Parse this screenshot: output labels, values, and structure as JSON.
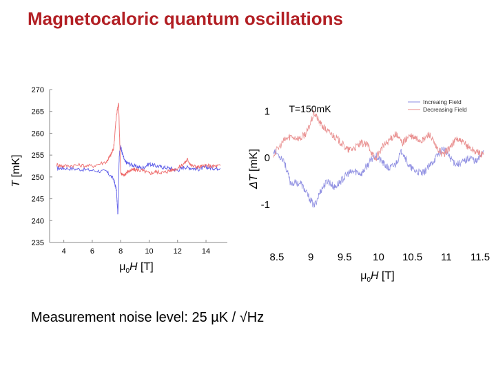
{
  "slide": {
    "title": "Magnetocaloric quantum oscillations",
    "footer": "Measurement noise level: 25 µK / √Hz"
  },
  "chart_data": [
    {
      "type": "line",
      "title": "",
      "xlabel_prefix": "μ",
      "xlabel_sub": "0",
      "xlabel_var": "H",
      "xlabel_unit": " [T]",
      "ylabel_var": "T",
      "ylabel_unit": " [mK]",
      "xlim": [
        3,
        15.5
      ],
      "ylim": [
        235,
        270
      ],
      "xticks": [
        4,
        6,
        8,
        10,
        12,
        14
      ],
      "yticks": [
        235,
        240,
        245,
        250,
        255,
        260,
        265,
        270
      ],
      "grid": false,
      "colors": {
        "up": "#4a4ae6",
        "down": "#ec5a5a",
        "axis": "#8a8a8a"
      },
      "series": [
        {
          "key": "up",
          "x": [
            3.5,
            4,
            5,
            6,
            7,
            7.5,
            7.7,
            7.8,
            7.9,
            8,
            8.1,
            8.3,
            8.6,
            9,
            9.5,
            10,
            10.5,
            11,
            11.5,
            12,
            12.5,
            13,
            13.5,
            14,
            14.5,
            15
          ],
          "y": [
            252,
            252,
            251.8,
            251.5,
            251.2,
            249.5,
            247,
            241.5,
            255,
            257,
            255.5,
            253.5,
            253,
            252.5,
            252,
            253,
            252.5,
            252.2,
            252,
            251.5,
            252.3,
            252,
            251.8,
            252.2,
            252,
            252
          ]
        },
        {
          "key": "down",
          "x": [
            3.5,
            4,
            5,
            6,
            7,
            7.3,
            7.5,
            7.7,
            7.85,
            8,
            8.2,
            8.4,
            8.7,
            9,
            9.5,
            10,
            10.5,
            11,
            11.5,
            12,
            12.5,
            12.7,
            13,
            13.5,
            14,
            14.5,
            15
          ],
          "y": [
            252.8,
            252.5,
            252.7,
            252.5,
            253.5,
            255,
            256.5,
            264,
            267,
            251,
            250.2,
            251,
            251.5,
            251.7,
            251.5,
            250.8,
            251.2,
            251,
            251.5,
            252,
            253.2,
            254,
            252.5,
            252.3,
            252.6,
            252.4,
            252.6
          ]
        }
      ]
    },
    {
      "type": "line",
      "title": "T=150mK",
      "xlabel_prefix": "μ",
      "xlabel_sub": "0",
      "xlabel_var": "H",
      "xlabel_unit": " [T]",
      "ylabel_var": "ΔT",
      "ylabel_unit": " [mK]",
      "xlim": [
        8.45,
        11.55
      ],
      "ylim": [
        -1.5,
        1.3
      ],
      "xticks": [
        8.5,
        9,
        9.5,
        10,
        10.5,
        11,
        11.5
      ],
      "yticks": [
        1,
        0,
        -1
      ],
      "grid": false,
      "legend": {
        "position": "top-right",
        "entries": [
          "Increaing Field",
          "Decreasing Field"
        ]
      },
      "colors": {
        "increasing": "#8a8ae0",
        "decreasing": "#e88a8a"
      },
      "series": [
        {
          "name": "Increaing Field",
          "key": "increasing",
          "x": [
            8.45,
            8.6,
            8.7,
            8.85,
            8.95,
            9.05,
            9.15,
            9.25,
            9.35,
            9.45,
            9.55,
            9.65,
            9.75,
            9.85,
            9.95,
            10.05,
            10.15,
            10.25,
            10.35,
            10.45,
            10.55,
            10.65,
            10.75,
            10.85,
            10.95,
            11.05,
            11.15,
            11.25,
            11.35,
            11.45,
            11.55
          ],
          "y": [
            0.15,
            -0.05,
            -0.55,
            -0.55,
            -0.8,
            -1.05,
            -0.7,
            -0.5,
            -0.65,
            -0.5,
            -0.35,
            -0.3,
            -0.35,
            -0.15,
            0.05,
            -0.1,
            -0.25,
            -0.15,
            0.15,
            -0.2,
            -0.3,
            -0.35,
            -0.2,
            0.0,
            0.2,
            0.0,
            -0.15,
            -0.1,
            0.0,
            -0.1,
            0.15
          ]
        },
        {
          "name": "Decreasing Field",
          "key": "decreasing",
          "x": [
            8.45,
            8.6,
            8.7,
            8.85,
            8.95,
            9.05,
            9.15,
            9.25,
            9.35,
            9.45,
            9.55,
            9.65,
            9.75,
            9.85,
            9.95,
            10.05,
            10.15,
            10.25,
            10.35,
            10.45,
            10.55,
            10.65,
            10.75,
            10.85,
            10.95,
            11.05,
            11.15,
            11.25,
            11.35,
            11.45,
            11.55
          ],
          "y": [
            0.05,
            0.35,
            0.45,
            0.4,
            0.55,
            0.95,
            0.7,
            0.55,
            0.45,
            0.3,
            0.15,
            0.2,
            0.3,
            0.25,
            -0.05,
            0.2,
            0.35,
            0.5,
            0.3,
            0.45,
            0.4,
            0.35,
            0.5,
            0.2,
            0.05,
            0.2,
            0.4,
            0.3,
            0.2,
            0.1,
            0.05
          ]
        }
      ]
    }
  ]
}
